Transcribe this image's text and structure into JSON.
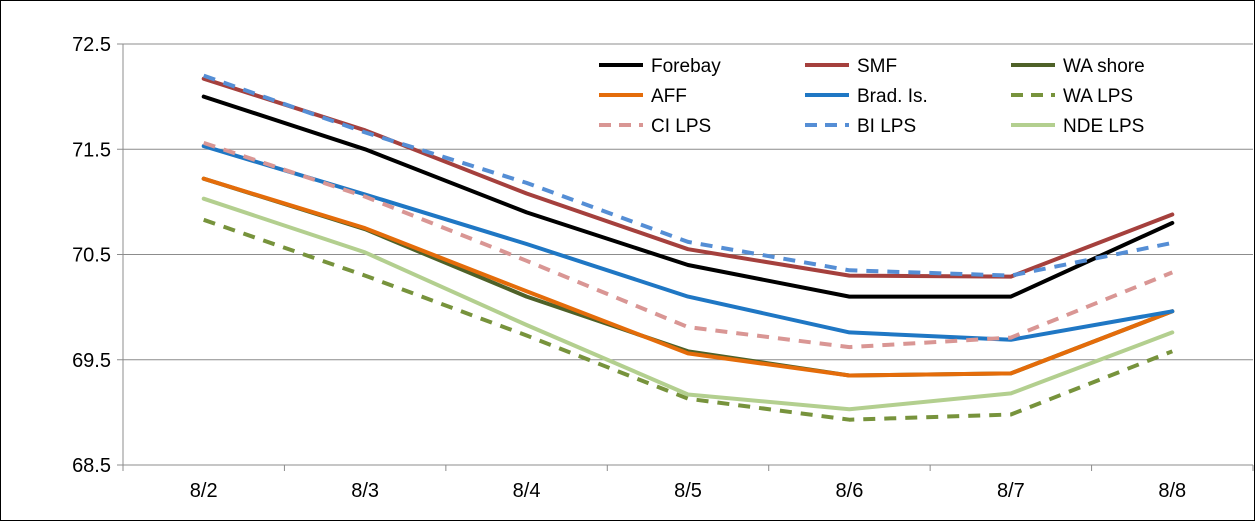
{
  "chart_data": {
    "type": "line",
    "title": "",
    "xlabel": "",
    "ylabel": "",
    "categories": [
      "8/2",
      "8/3",
      "8/4",
      "8/5",
      "8/6",
      "8/7",
      "8/8"
    ],
    "ylim": [
      68.5,
      72.5
    ],
    "yticks": [
      "72.5",
      "71.5",
      "70.5",
      "69.5",
      "68.5"
    ],
    "ytick_values": [
      72.5,
      71.5,
      70.5,
      69.5,
      68.5
    ],
    "grid": true,
    "legend_position": "top-right",
    "series": [
      {
        "name": "Forebay",
        "color": "#000000",
        "dash": false,
        "values": [
          72.0,
          71.5,
          70.9,
          70.4,
          70.1,
          70.1,
          70.8
        ]
      },
      {
        "name": "SMF",
        "color": "#A5403D",
        "dash": false,
        "values": [
          72.17,
          71.68,
          71.08,
          70.55,
          70.3,
          70.29,
          70.88
        ]
      },
      {
        "name": "WA shore",
        "color": "#4E6128",
        "dash": false,
        "values": [
          71.22,
          70.74,
          70.1,
          69.58,
          69.35,
          69.37,
          69.96
        ]
      },
      {
        "name": "AFF",
        "color": "#E46C0A",
        "dash": false,
        "values": [
          71.22,
          70.75,
          70.15,
          69.56,
          69.35,
          69.37,
          69.96
        ]
      },
      {
        "name": "Brad. Is.",
        "color": "#1F77C4",
        "dash": false,
        "values": [
          71.53,
          71.07,
          70.6,
          70.1,
          69.76,
          69.69,
          69.96
        ]
      },
      {
        "name": "WA LPS",
        "color": "#77933C",
        "dash": true,
        "values": [
          70.83,
          70.3,
          69.73,
          69.13,
          68.93,
          68.98,
          69.58
        ]
      },
      {
        "name": "CI LPS",
        "color": "#D99694",
        "dash": true,
        "values": [
          71.56,
          71.05,
          70.44,
          69.81,
          69.62,
          69.71,
          70.33
        ]
      },
      {
        "name": "BI LPS",
        "color": "#558ED5",
        "dash": true,
        "values": [
          72.2,
          71.66,
          71.18,
          70.62,
          70.35,
          70.3,
          70.61
        ]
      },
      {
        "name": "NDE LPS",
        "color": "#B3CF8F",
        "dash": false,
        "values": [
          71.03,
          70.52,
          69.83,
          69.17,
          69.03,
          69.18,
          69.76
        ]
      }
    ]
  }
}
